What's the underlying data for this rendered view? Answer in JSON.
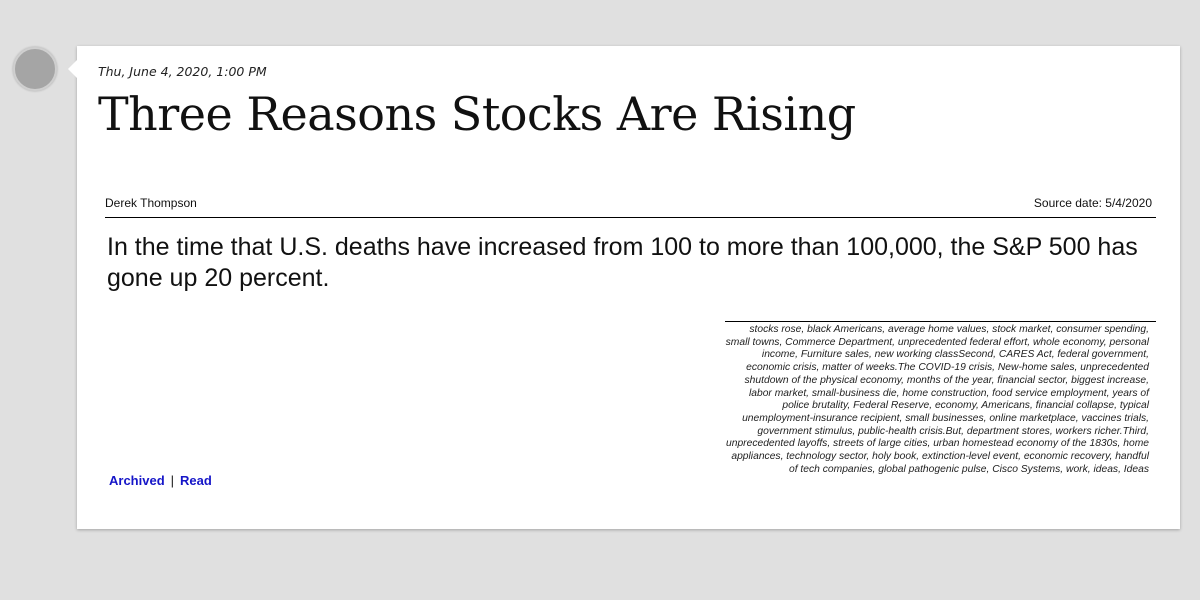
{
  "post": {
    "timestamp": "Thu, June 4, 2020, 1:00 PM",
    "title": "Three Reasons Stocks Are Rising",
    "author": "Derek Thompson",
    "source_date": "Source date: 5/4/2020",
    "lead": "In the time that U.S. deaths have increased from 100 to more than 100,000, the S&P 500 has gone up 20 percent.",
    "keywords": "stocks rose, black Americans, average home values, stock market, consumer spending, small towns, Commerce Department, unprecedented federal effort, whole economy, personal income, Furniture sales, new working classSecond, CARES Act, federal government, economic crisis, matter of weeks.The COVID-19 crisis, New-home sales, unprecedented shutdown of the physical economy, months of the year, financial sector, biggest increase, labor market, small-business die, home construction, food service employment, years of police brutality, Federal Reserve, economy, Americans, financial collapse, typical unemployment-insurance recipient, small businesses, online marketplace, vaccines trials, government stimulus, public-health crisis.But, department stores, workers richer.Third, unprecedented layoffs, streets of large cities, urban homestead economy of the 1830s, home appliances, technology sector, holy book, extinction-level event, economic recovery, handful of tech companies, global pathogenic pulse, Cisco Systems, work, ideas, Ideas"
  },
  "links": {
    "archived": "Archived",
    "separator": "|",
    "read": "Read"
  },
  "colors": {
    "background": "#e0e0e0",
    "card": "#ffffff",
    "link": "#1515c8",
    "avatar": "#a5a5a5"
  }
}
